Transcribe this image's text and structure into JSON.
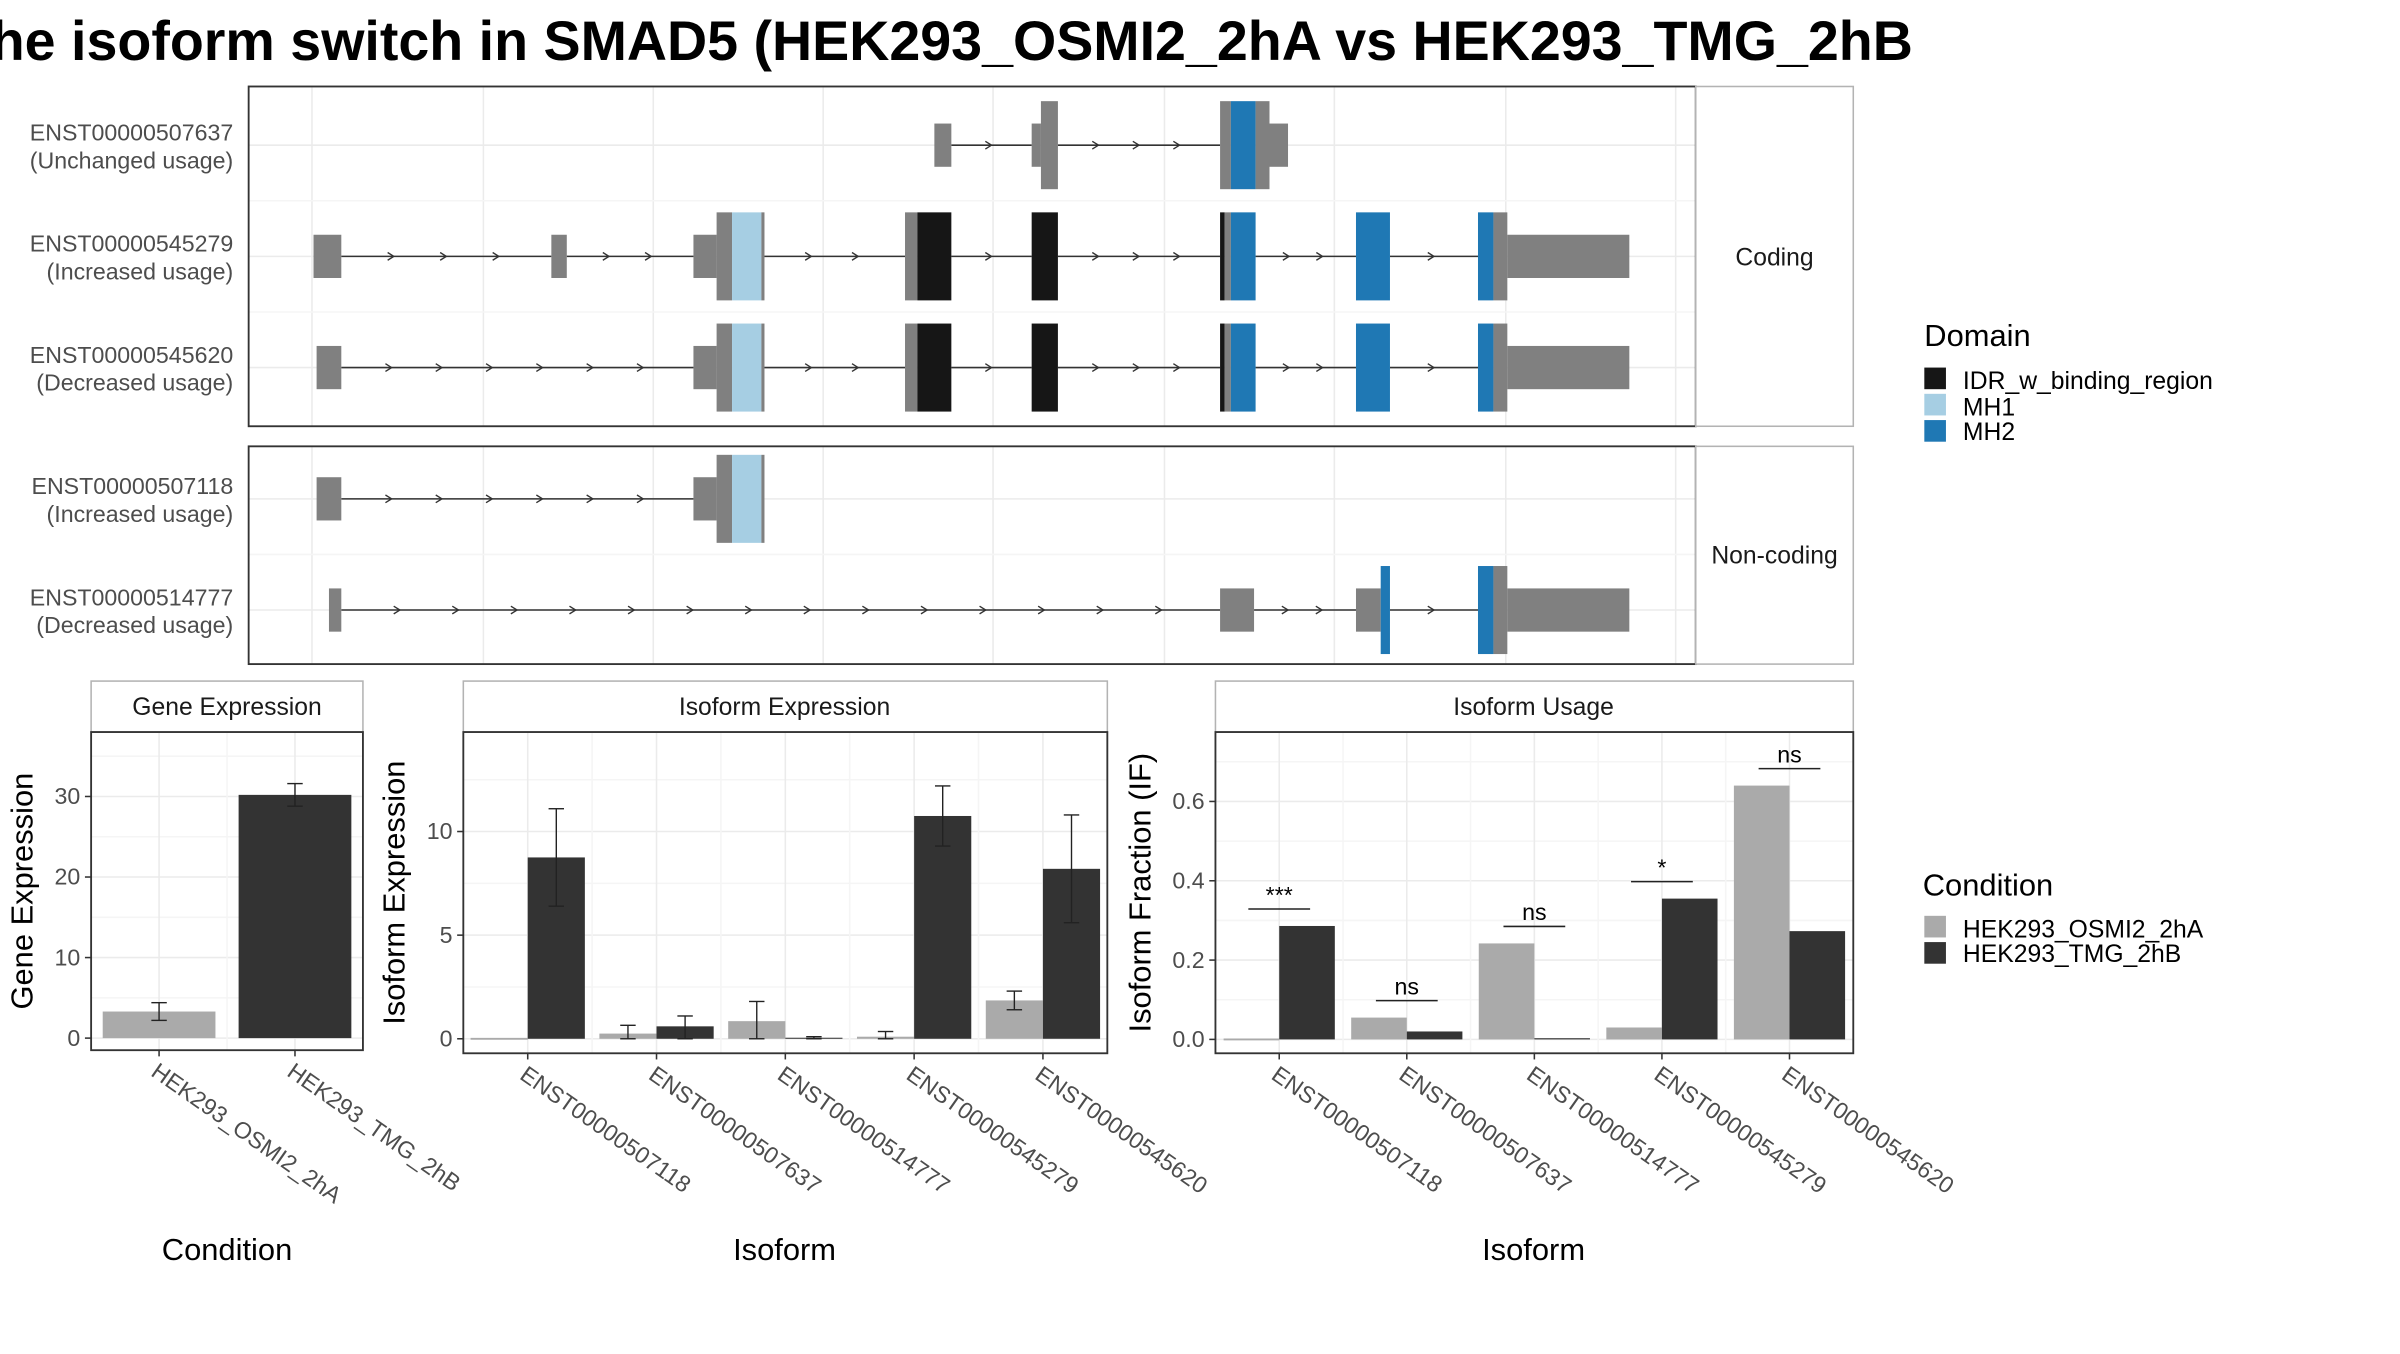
{
  "title": "he isoform switch in SMAD5 (HEK293_OSMI2_2hA vs HEK293_TMG_2hB",
  "colors": {
    "IDR_w_binding_region": "#161616",
    "MH1": "#a6cee3",
    "MH2": "#1f78b4",
    "exon": "#808080",
    "HEK293_OSMI2_2hA": "#aaaaaa",
    "HEK293_TMG_2hB": "#333333"
  },
  "structure": {
    "coding_label": "Coding",
    "noncoding_label": "Non-coding",
    "transcripts": [
      {
        "id": "ENST00000507637",
        "status": "(Unchanged usage)",
        "group": "coding"
      },
      {
        "id": "ENST00000545279",
        "status": "(Increased usage)",
        "group": "coding"
      },
      {
        "id": "ENST00000545620",
        "status": "(Decreased usage)",
        "group": "coding"
      },
      {
        "id": "ENST00000507118",
        "status": "(Increased usage)",
        "group": "noncoding"
      },
      {
        "id": "ENST00000514777",
        "status": "(Decreased usage)",
        "group": "noncoding"
      }
    ]
  },
  "legend_domain": {
    "title": "Domain",
    "items": [
      {
        "label": "IDR_w_binding_region",
        "color": "#161616"
      },
      {
        "label": "MH1",
        "color": "#a6cee3"
      },
      {
        "label": "MH2",
        "color": "#1f78b4"
      }
    ]
  },
  "legend_condition": {
    "title": "Condition",
    "items": [
      {
        "label": "HEK293_OSMI2_2hA",
        "color": "#aaaaaa"
      },
      {
        "label": "HEK293_TMG_2hB",
        "color": "#333333"
      }
    ]
  },
  "chart_data": [
    {
      "type": "bar",
      "strip": "Gene Expression",
      "xlabel": "Condition",
      "ylabel": "Gene Expression",
      "ylim": [
        -1.5,
        38
      ],
      "yticks": [
        0,
        10,
        20,
        30
      ],
      "categories": [
        "HEK293_OSMI2_2hA",
        "HEK293_TMG_2hB"
      ],
      "values": [
        3.3,
        30.2
      ],
      "errors": [
        [
          2.2,
          4.4
        ],
        [
          28.8,
          31.6
        ]
      ]
    },
    {
      "type": "bar",
      "strip": "Isoform Expression",
      "xlabel": "Isoform",
      "ylabel": "Isoform Expression",
      "ylim": [
        -0.7,
        14.8
      ],
      "yticks": [
        0,
        5,
        10
      ],
      "categories": [
        "ENST00000507118",
        "ENST00000507637",
        "ENST00000514777",
        "ENST00000545279",
        "ENST00000545620"
      ],
      "series": [
        {
          "name": "HEK293_OSMI2_2hA",
          "values": [
            0.0,
            0.25,
            0.85,
            0.1,
            1.85
          ],
          "errors": [
            [
              0.0,
              0.0
            ],
            [
              0.0,
              0.65
            ],
            [
              0.0,
              1.8
            ],
            [
              0.0,
              0.35
            ],
            [
              1.4,
              2.3
            ]
          ]
        },
        {
          "name": "HEK293_TMG_2hB",
          "values": [
            8.75,
            0.6,
            0.05,
            10.75,
            8.2
          ],
          "errors": [
            [
              6.4,
              11.1
            ],
            [
              0.0,
              1.1
            ],
            [
              0.0,
              0.1
            ],
            [
              9.3,
              12.2
            ],
            [
              5.6,
              10.8
            ]
          ]
        }
      ]
    },
    {
      "type": "bar",
      "strip": "Isoform Usage",
      "xlabel": "Isoform",
      "ylabel": "Isoform Fraction (IF)",
      "ylim": [
        -0.035,
        0.775
      ],
      "yticks": [
        0.0,
        0.2,
        0.4,
        0.6
      ],
      "categories": [
        "ENST00000507118",
        "ENST00000507637",
        "ENST00000514777",
        "ENST00000545279",
        "ENST00000545620"
      ],
      "series": [
        {
          "name": "HEK293_OSMI2_2hA",
          "values": [
            0.0,
            0.055,
            0.242,
            0.03,
            0.64
          ]
        },
        {
          "name": "HEK293_TMG_2hB",
          "values": [
            0.286,
            0.02,
            0.003,
            0.355,
            0.273
          ]
        }
      ],
      "significance": [
        "***",
        "ns",
        "ns",
        "*",
        "ns"
      ]
    }
  ]
}
